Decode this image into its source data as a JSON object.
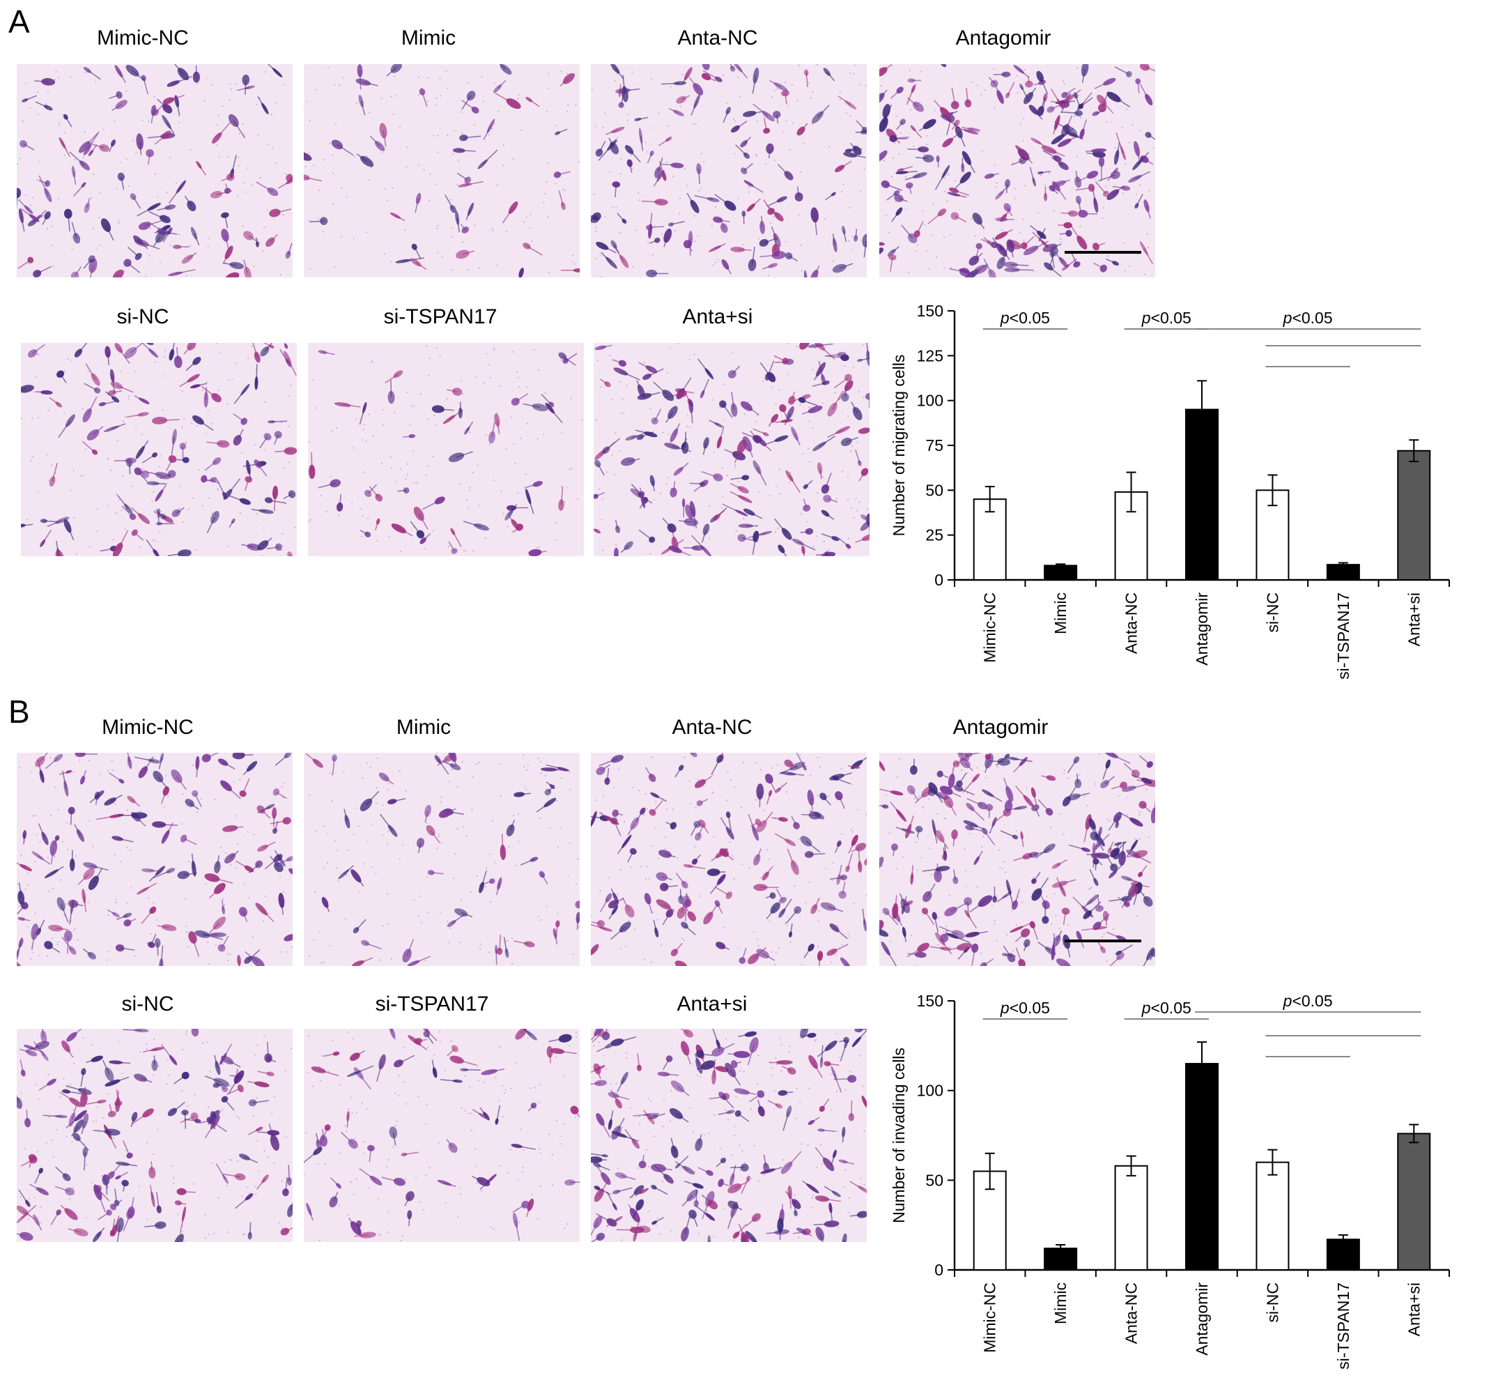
{
  "panels": [
    {
      "letter": "A",
      "images": [
        {
          "label": "Mimic-NC",
          "density": 0.45
        },
        {
          "label": "Mimic",
          "density": 0.08
        },
        {
          "label": "Anta-NC",
          "density": 0.5
        },
        {
          "label": "Antagomir",
          "density": 0.95,
          "scale_bar": true
        },
        {
          "label": "si-NC",
          "density": 0.5
        },
        {
          "label": "si-TSPAN17",
          "density": 0.09
        },
        {
          "label": "Anta+si",
          "density": 0.72
        }
      ]
    },
    {
      "letter": "B",
      "images": [
        {
          "label": "Mimic-NC",
          "density": 0.55
        },
        {
          "label": "Mimic",
          "density": 0.12
        },
        {
          "label": "Anta-NC",
          "density": 0.58
        },
        {
          "label": "Antagomir",
          "density": 1.0,
          "scale_bar": true
        },
        {
          "label": "si-NC",
          "density": 0.6
        },
        {
          "label": "si-TSPAN17",
          "density": 0.17
        },
        {
          "label": "Anta+si",
          "density": 0.76
        }
      ]
    }
  ],
  "colors": {
    "bar_control": "#ffffff",
    "bar_treated": "#000000",
    "bar_combo": "#595959",
    "stain_violet": "#5b2a86",
    "stain_magenta": "#a0307f",
    "stain_background": "#f3e6f2"
  },
  "chart_data": [
    {
      "type": "bar",
      "ylabel": "Number of migrating cells",
      "ylim": [
        0,
        150
      ],
      "yticks": [
        0,
        25,
        50,
        75,
        100,
        125,
        150
      ],
      "categories": [
        "Mimic-NC",
        "Mimic",
        "Anta-NC",
        "Antagomir",
        "si-NC",
        "si-TSPAN17",
        "Anta+si"
      ],
      "values": [
        45,
        8,
        49,
        95,
        50,
        8.5,
        72
      ],
      "errors": [
        7,
        0.8,
        11,
        16,
        8.5,
        1,
        6
      ],
      "bar_colors": [
        "#ffffff",
        "#000000",
        "#ffffff",
        "#000000",
        "#ffffff",
        "#000000",
        "#595959"
      ],
      "significance": [
        {
          "text": "p<0.05",
          "from": 0,
          "to": 1,
          "level": 0
        },
        {
          "text": "p<0.05",
          "from": 2,
          "to": 3,
          "level": 0
        },
        {
          "text": "p<0.05",
          "from": 3,
          "to": 6,
          "level": 0
        },
        {
          "text": "",
          "from": 4,
          "to": 6,
          "level": 1
        },
        {
          "text": "",
          "from": 4,
          "to": 5,
          "level": 2
        }
      ]
    },
    {
      "type": "bar",
      "ylabel": "Number of invading cells",
      "ylim": [
        0,
        150
      ],
      "yticks": [
        0,
        50,
        100,
        150
      ],
      "categories": [
        "Mimic-NC",
        "Mimic",
        "Anta-NC",
        "Antagomir",
        "si-NC",
        "si-TSPAN17",
        "Anta+si"
      ],
      "values": [
        55,
        12,
        58,
        115,
        60,
        17,
        76
      ],
      "errors": [
        10,
        2,
        5.5,
        12,
        7,
        2.5,
        5
      ],
      "bar_colors": [
        "#ffffff",
        "#000000",
        "#ffffff",
        "#000000",
        "#ffffff",
        "#000000",
        "#595959"
      ],
      "significance": [
        {
          "text": "p<0.05",
          "from": 0,
          "to": 1,
          "level": 0
        },
        {
          "text": "p<0.05",
          "from": 2,
          "to": 3,
          "level": 0
        },
        {
          "text": "p<0.05",
          "from": 3,
          "to": 6,
          "level": -1
        },
        {
          "text": "",
          "from": 4,
          "to": 6,
          "level": 1
        },
        {
          "text": "",
          "from": 4,
          "to": 5,
          "level": 2
        }
      ]
    }
  ]
}
